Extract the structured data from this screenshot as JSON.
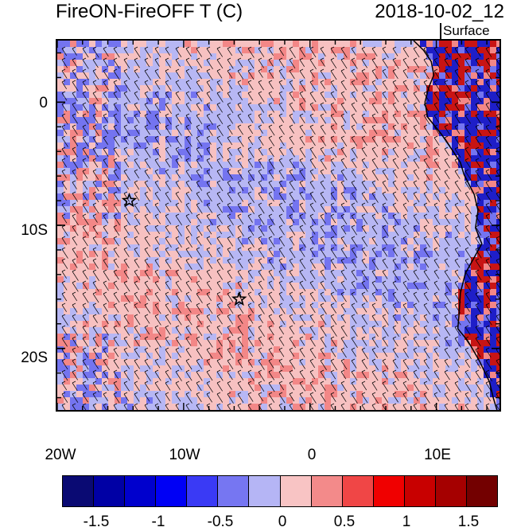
{
  "header": {
    "title": "FireON-FireOFF T (C)",
    "datetime": "2018-10-02_12",
    "level": "Surface"
  },
  "map": {
    "lon_range": [
      -20,
      15
    ],
    "lat_range": [
      -25,
      5
    ],
    "x_ticks": [
      "20W",
      "10W",
      "0",
      "10E"
    ],
    "y_ticks": [
      "0",
      "10S",
      "20S"
    ],
    "markers": [
      {
        "type": "star",
        "lon": -14.3,
        "lat": -8.0
      },
      {
        "type": "star",
        "lon": -5.6,
        "lat": -16.0
      }
    ],
    "field_colors": {
      "ocean_warm": "#f7c1c1",
      "ocean_cool": "#b7b7f4",
      "warm_strong": "#f38787",
      "cool_strong": "#7474f0",
      "land_hot": "#c81414",
      "land_cold": "#1e1ec8"
    }
  },
  "colorbar": {
    "colors": [
      "#0a0a73",
      "#0000a5",
      "#0000cd",
      "#0000f5",
      "#3a3af5",
      "#7676f2",
      "#b5b5f5",
      "#f8c4c4",
      "#f38a8a",
      "#f04646",
      "#f00000",
      "#c80000",
      "#a50000",
      "#730000"
    ],
    "labels": [
      "-1.5",
      "-1",
      "-0.5",
      "0",
      "0.5",
      "1",
      "1.5"
    ]
  }
}
